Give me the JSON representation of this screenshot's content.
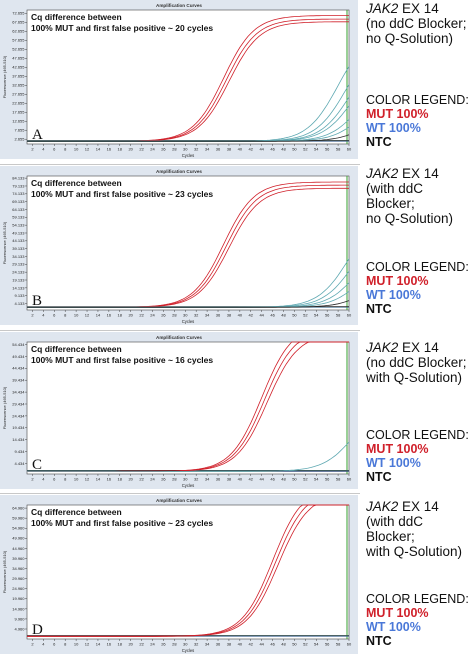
{
  "colors": {
    "mut": "#d0202a",
    "wt": "#4a78d8",
    "ntc": "#2a2a2a",
    "wt_teal": "#5fa9b2",
    "plot_bg": "#ffffff",
    "frame_bg": "#dfe6ef",
    "threshold": "#36a02f"
  },
  "legend": {
    "title": "COLOR LEGEND:",
    "mut": "MUT 100%",
    "wt": "WT 100%",
    "ntc": "NTC"
  },
  "common": {
    "chart_title": "Amplification Curves",
    "xlabel": "Cycles",
    "ylabel": "Fluorescence (465-510)"
  },
  "panels": [
    {
      "letter": "A",
      "annotation_line1": "Cq difference between",
      "annotation_line2": "100% MUT and first false positive ~ 20 cycles",
      "assay_gene": "JAK2",
      "assay_rest": " EX 14",
      "assay_line2": "(no ddC Blocker;",
      "assay_line3": "no Q-Solution)"
    },
    {
      "letter": "B",
      "annotation_line1": "Cq difference between",
      "annotation_line2": "100% MUT and first false positive ~ 23 cycles",
      "assay_gene": "JAK2",
      "assay_rest": " EX 14",
      "assay_line2": "(with ddC Blocker;",
      "assay_line3": "no Q-Solution)"
    },
    {
      "letter": "C",
      "annotation_line1": "Cq difference between",
      "annotation_line2": "100% MUT and first false positive ~ 16 cycles",
      "assay_gene": "JAK2",
      "assay_rest": " EX 14",
      "assay_line2": "(no ddC Blocker;",
      "assay_line3": "with Q-Solution)"
    },
    {
      "letter": "D",
      "annotation_line1": "Cq difference between",
      "annotation_line2": "100% MUT and first false positive ~ 23 cycles",
      "assay_gene": "JAK2",
      "assay_rest": " EX 14",
      "assay_line2": "(with ddC Blocker;",
      "assay_line3": "with Q-Solution)"
    }
  ],
  "chart_data": [
    {
      "type": "line",
      "title": "Amplification Curves",
      "xlabel": "Cycles",
      "ylabel": "Fluorescence (465-510)",
      "x_ticks": [
        2,
        4,
        6,
        8,
        10,
        12,
        14,
        16,
        18,
        20,
        22,
        24,
        26,
        28,
        30,
        32,
        34,
        36,
        38,
        40,
        42,
        44,
        46,
        48,
        50,
        52,
        54,
        56,
        58,
        60
      ],
      "xlim": [
        1,
        60
      ],
      "ylim": [
        0,
        74.5
      ],
      "y_ticks": [
        "2.655",
        "7.655",
        "12.655",
        "17.655",
        "22.655",
        "27.655",
        "32.655",
        "37.655",
        "42.655",
        "47.655",
        "52.655",
        "57.655",
        "62.655",
        "67.655",
        "72.655"
      ],
      "series": [
        {
          "name": "MUT 100%",
          "curves": [
            {
              "cq": 33.0,
              "plateau": 70.0
            },
            {
              "cq": 33.5,
              "plateau": 68.0
            },
            {
              "cq": 34.0,
              "plateau": 66.5
            }
          ]
        },
        {
          "name": "WT 100%",
          "curves": [
            {
              "cq": 54.0,
              "plateau": 62.0
            },
            {
              "cq": 55.5,
              "plateau": 58.0
            },
            {
              "cq": 56.5,
              "plateau": 54.0
            },
            {
              "cq": 57.0,
              "plateau": 48.0
            },
            {
              "cq": 58.5,
              "plateau": 42.0
            },
            {
              "cq": 59.5,
              "plateau": 36.0
            }
          ]
        },
        {
          "name": "NTC",
          "curves": [
            {
              "cq": 61.5,
              "plateau": 30.0
            }
          ]
        }
      ]
    },
    {
      "type": "line",
      "title": "Amplification Curves",
      "xlabel": "Cycles",
      "ylabel": "Fluorescence (465-510)",
      "x_ticks": [
        2,
        4,
        6,
        8,
        10,
        12,
        14,
        16,
        18,
        20,
        22,
        24,
        26,
        28,
        30,
        32,
        34,
        36,
        38,
        40,
        42,
        44,
        46,
        48,
        50,
        52,
        54,
        56,
        58,
        60
      ],
      "xlim": [
        1,
        60
      ],
      "ylim": [
        0,
        85.5
      ],
      "y_ticks": [
        "4.133",
        "9.133",
        "14.133",
        "19.133",
        "24.133",
        "29.133",
        "34.133",
        "39.133",
        "44.133",
        "49.133",
        "54.133",
        "59.133",
        "64.133",
        "69.133",
        "74.133",
        "79.133",
        "84.133"
      ],
      "series": [
        {
          "name": "MUT 100%",
          "curves": [
            {
              "cq": 33.0,
              "plateau": 80.0
            },
            {
              "cq": 33.5,
              "plateau": 78.0
            },
            {
              "cq": 34.0,
              "plateau": 76.0
            }
          ]
        },
        {
          "name": "WT 100%",
          "curves": [
            {
              "cq": 56.0,
              "plateau": 62.0
            },
            {
              "cq": 57.0,
              "plateau": 56.0
            },
            {
              "cq": 58.0,
              "plateau": 48.0
            },
            {
              "cq": 59.0,
              "plateau": 40.0
            }
          ]
        },
        {
          "name": "NTC",
          "curves": [
            {
              "cq": 61.0,
              "plateau": 30.0
            }
          ]
        }
      ]
    },
    {
      "type": "line",
      "title": "Amplification Curves",
      "xlabel": "Cycles",
      "ylabel": "Fluorescence (465-510)",
      "x_ticks": [
        2,
        4,
        6,
        8,
        10,
        12,
        14,
        16,
        18,
        20,
        22,
        24,
        26,
        28,
        30,
        32,
        34,
        36,
        38,
        40,
        42,
        44,
        46,
        48,
        50,
        52,
        54,
        56,
        58,
        60
      ],
      "xlim": [
        1,
        60
      ],
      "ylim": [
        0,
        55.5
      ],
      "y_ticks": [
        "4.434",
        "9.434",
        "14.434",
        "19.434",
        "24.434",
        "29.434",
        "34.434",
        "39.434",
        "44.434",
        "49.434",
        "54.434"
      ],
      "series": [
        {
          "name": "MUT 100%",
          "curves": [
            {
              "cq": 40.0,
              "plateau": 62.0
            },
            {
              "cq": 40.5,
              "plateau": 60.0
            },
            {
              "cq": 41.0,
              "plateau": 58.0
            }
          ]
        },
        {
          "name": "WT 100%",
          "curves": [
            {
              "cq": 57.0,
              "plateau": 30.0
            }
          ]
        },
        {
          "name": "NTC",
          "curves": []
        }
      ]
    },
    {
      "type": "line",
      "title": "Amplification Curves",
      "xlabel": "Cycles",
      "ylabel": "Fluorescence (465-510)",
      "x_ticks": [
        2,
        4,
        6,
        8,
        10,
        12,
        14,
        16,
        18,
        20,
        22,
        24,
        26,
        28,
        30,
        32,
        34,
        36,
        38,
        40,
        42,
        44,
        46,
        48,
        50,
        52,
        54,
        56,
        58,
        60
      ],
      "xlim": [
        1,
        60
      ],
      "ylim": [
        0,
        66.5
      ],
      "y_ticks": [
        "4.960",
        "9.960",
        "14.960",
        "19.960",
        "24.960",
        "29.960",
        "34.960",
        "39.960",
        "44.960",
        "49.960",
        "54.960",
        "59.960",
        "64.960"
      ],
      "series": [
        {
          "name": "MUT 100%",
          "curves": [
            {
              "cq": 42.0,
              "plateau": 75.0
            },
            {
              "cq": 42.5,
              "plateau": 73.0
            },
            {
              "cq": 43.0,
              "plateau": 71.0
            }
          ]
        },
        {
          "name": "WT 100%",
          "curves": []
        },
        {
          "name": "NTC",
          "curves": []
        }
      ]
    }
  ]
}
